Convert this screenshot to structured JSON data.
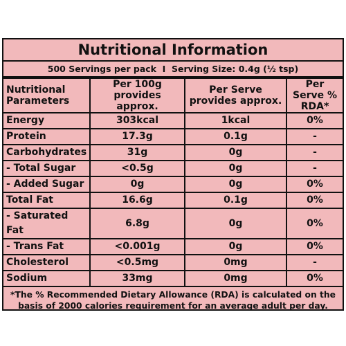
{
  "header": {
    "title": "Nutritional Information",
    "subtitle": "500 Servings per pack  I  Serving Size: 0.4g (½ tsp)"
  },
  "table": {
    "columns": [
      "Nutritional Parameters",
      "Per 100g provides approx.",
      "Per Serve provides approx.",
      "Per Serve % RDA*"
    ],
    "rows": [
      [
        "Energy",
        "303kcal",
        "1kcal",
        "0%"
      ],
      [
        "Protein",
        "17.3g",
        "0.1g",
        "-"
      ],
      [
        "Carbohydrates",
        "31g",
        "0g",
        "-"
      ],
      [
        "- Total Sugar",
        "<0.5g",
        "0g",
        "-"
      ],
      [
        "- Added Sugar",
        "0g",
        "0g",
        "0%"
      ],
      [
        "Total Fat",
        "16.6g",
        "0.1g",
        "0%"
      ],
      [
        "- Saturated Fat",
        "6.8g",
        "0g",
        "0%"
      ],
      [
        "- Trans Fat",
        "<0.001g",
        "0g",
        "0%"
      ],
      [
        "Cholesterol",
        "<0.5mg",
        "0mg",
        "-"
      ],
      [
        "Sodium",
        "33mg",
        "0mg",
        "0%"
      ]
    ]
  },
  "footnote": "*The % Recommended Dietary Allowance (RDA) is calculated on the basis of 2000 calories requirement for an average adult per day."
}
